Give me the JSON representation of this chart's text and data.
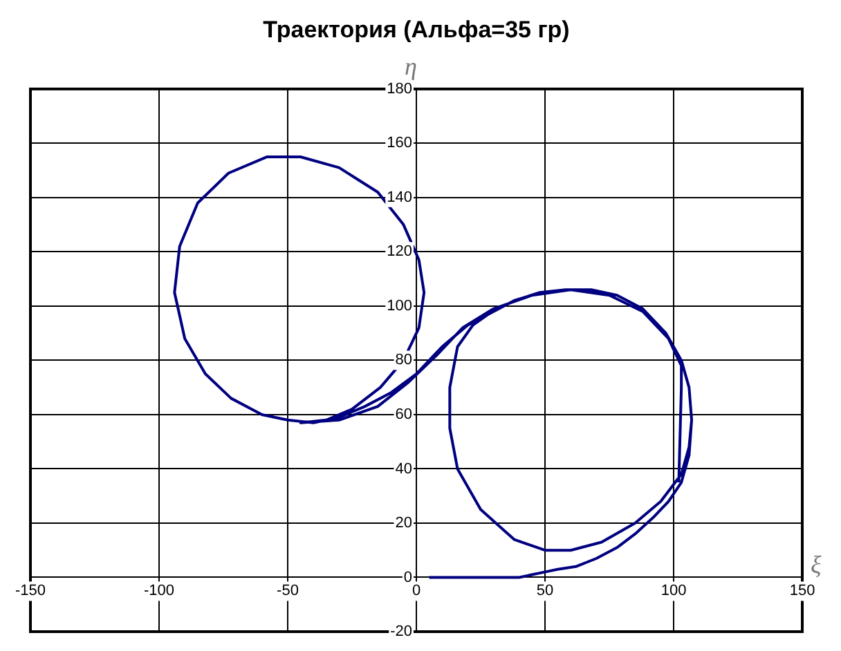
{
  "chart_data": {
    "type": "line",
    "title": "Траектория (Альфа=35 гр)",
    "xlabel": "ξ",
    "ylabel": "η",
    "xlim": [
      -150,
      150
    ],
    "xticks": [
      -150,
      -100,
      -50,
      0,
      50,
      100,
      150
    ],
    "ylim": [
      -20,
      180
    ],
    "yticks": [
      -20,
      0,
      20,
      40,
      60,
      80,
      100,
      120,
      140,
      160,
      180
    ],
    "grid": true,
    "legend": false,
    "marker": "none",
    "line_style": "solid",
    "series": [
      {
        "color": "#000080",
        "x": [
          5,
          20,
          40,
          45,
          50,
          55,
          62,
          70,
          78,
          85,
          92,
          98,
          103,
          106,
          107,
          106,
          103,
          97,
          88,
          78,
          68,
          58,
          48,
          38,
          28,
          22,
          16,
          13,
          13,
          16,
          25,
          38,
          50,
          60,
          72,
          85,
          95,
          103,
          106,
          107,
          106,
          103,
          97,
          88,
          78,
          68,
          58,
          48,
          38,
          28,
          20,
          10,
          0,
          -10,
          -20,
          -30,
          -40,
          -50,
          -60,
          -72,
          -82,
          -90,
          -94,
          -92,
          -85,
          -73,
          -58,
          -45,
          -30,
          -15,
          -5,
          1,
          3,
          1,
          -5,
          -14,
          -25,
          -35,
          -45,
          -30,
          -15,
          -3,
          8,
          18,
          30,
          45,
          60,
          75,
          88,
          98,
          103,
          103,
          102
        ],
        "values": [
          0,
          0,
          0,
          1,
          2,
          3,
          4,
          7,
          11,
          16,
          22,
          28,
          35,
          45,
          58,
          70,
          80,
          90,
          99,
          104,
          106,
          106,
          105,
          102,
          97,
          93,
          85,
          70,
          55,
          40,
          25,
          14,
          10,
          10,
          13,
          20,
          28,
          38,
          48,
          58,
          70,
          80,
          90,
          99,
          104,
          106,
          106,
          105,
          102,
          97,
          93,
          85,
          75,
          68,
          63,
          59,
          57,
          58,
          60,
          66,
          75,
          88,
          105,
          122,
          138,
          149,
          155,
          155,
          151,
          142,
          130,
          117,
          105,
          92,
          80,
          70,
          62,
          58,
          57,
          58,
          63,
          72,
          82,
          92,
          99,
          104,
          106,
          104,
          98,
          88,
          78,
          70,
          35
        ]
      }
    ]
  }
}
